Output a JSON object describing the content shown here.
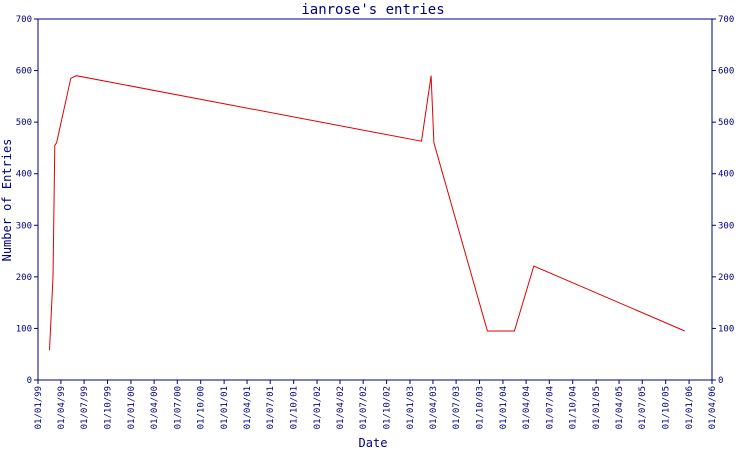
{
  "chart_data": {
    "type": "line",
    "title": "ianrose's entries",
    "xlabel": "Date",
    "ylabel": "Number of Entries",
    "ylim": [
      0,
      700
    ],
    "yticks": [
      0,
      100,
      200,
      300,
      400,
      500,
      600,
      700
    ],
    "xticks": [
      "01/01/99",
      "01/04/99",
      "01/07/99",
      "01/10/99",
      "01/01/00",
      "01/04/00",
      "01/07/00",
      "01/10/00",
      "01/01/01",
      "01/04/01",
      "01/07/01",
      "01/10/01",
      "01/01/02",
      "01/04/02",
      "01/07/02",
      "01/10/02",
      "01/01/03",
      "01/04/03",
      "01/07/03",
      "01/10/03",
      "01/01/04",
      "01/04/04",
      "01/07/04",
      "01/10/04",
      "01/01/05",
      "01/04/05",
      "01/07/05",
      "01/10/05",
      "01/01/06",
      "01/04/06"
    ],
    "grid": false,
    "colors": {
      "axis": "#000080",
      "line": "#e00000",
      "background": "#ffffff"
    },
    "series": [
      {
        "values": [
          {
            "x": "1999-02-15",
            "y": 58
          },
          {
            "x": "1999-03-01",
            "y": 200
          },
          {
            "x": "1999-03-08",
            "y": 455
          },
          {
            "x": "1999-03-15",
            "y": 460
          },
          {
            "x": "1999-05-10",
            "y": 585
          },
          {
            "x": "1999-06-01",
            "y": 590
          },
          {
            "x": "2003-02-15",
            "y": 463
          },
          {
            "x": "2003-03-25",
            "y": 590
          },
          {
            "x": "2003-04-05",
            "y": 460
          },
          {
            "x": "2003-11-01",
            "y": 95
          },
          {
            "x": "2004-02-15",
            "y": 95
          },
          {
            "x": "2004-05-01",
            "y": 221
          },
          {
            "x": "2005-12-15",
            "y": 95
          }
        ]
      }
    ]
  }
}
